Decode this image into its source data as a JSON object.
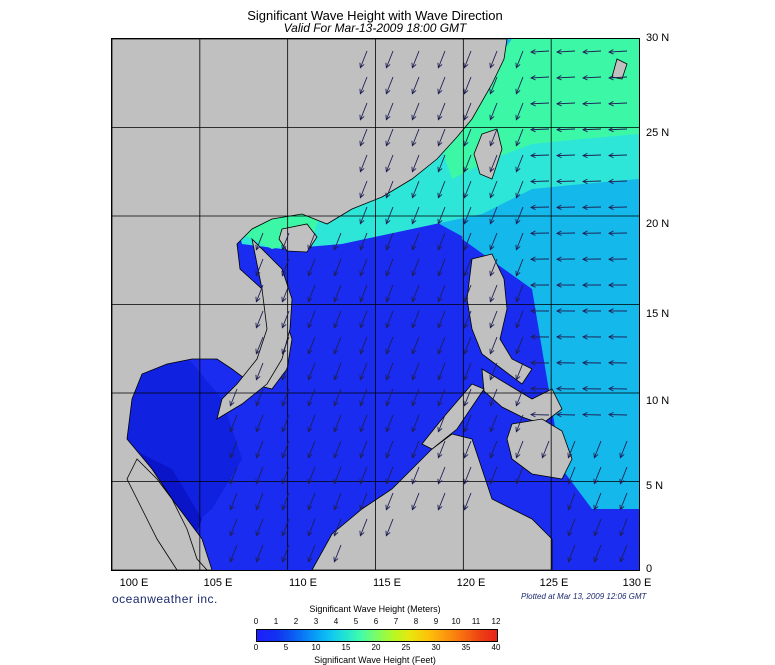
{
  "title": "Significant Wave Height with Wave Direction",
  "subtitle": "Valid For Mar-13-2009 18:00 GMT",
  "brand": "oceanweather inc.",
  "plotted": "Plotted at Mar 13, 2009 12:06 GMT",
  "lat_labels": [
    "30 N",
    "25 N",
    "20 N",
    "15 N",
    "10 N",
    "5 N",
    "0"
  ],
  "lon_labels": [
    "100 E",
    "105 E",
    "110 E",
    "115 E",
    "120 E",
    "125 E",
    "130 E"
  ],
  "scale": {
    "meters_title": "Significant Wave Height (Meters)",
    "feet_title": "Significant Wave Height (Feet)",
    "meters_ticks": [
      "0",
      "1",
      "2",
      "3",
      "4",
      "5",
      "6",
      "7",
      "8",
      "9",
      "10",
      "11",
      "12"
    ],
    "feet_ticks": [
      "0",
      "5",
      "10",
      "15",
      "20",
      "25",
      "30",
      "35",
      "40"
    ]
  },
  "map_extent": {
    "lon": [
      100,
      130
    ],
    "lat": [
      0,
      30
    ]
  },
  "colors": {
    "land": "#c0c0c0",
    "deep_blue": "#1a2cf0",
    "cyan": "#14b8ea",
    "light_cyan": "#2ee6d8",
    "green_cyan": "#3cf7a6",
    "arrow": "#1f1f55",
    "grid": "#000000"
  }
}
